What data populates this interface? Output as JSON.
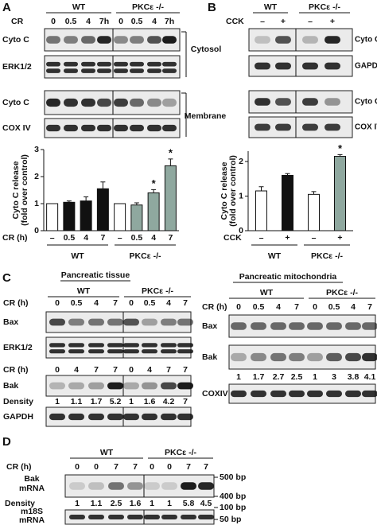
{
  "panels": {
    "A": {
      "label": "A",
      "groups": [
        "WT",
        "PKCε -/-"
      ],
      "row_label": "CR",
      "lanes": [
        "0",
        "0.5",
        "4",
        "7h",
        "0",
        "0.5",
        "4",
        "7h"
      ],
      "blots": [
        "Cyto C",
        "ERK1/2",
        "Cyto C",
        "COX IV"
      ],
      "fractions": [
        "Cytosol",
        "Membrane"
      ]
    },
    "B": {
      "label": "B",
      "groups": [
        "WT",
        "PKCε -/-"
      ],
      "row_label": "CCK",
      "lanes": [
        "–",
        "+",
        "–",
        "+"
      ],
      "blots": [
        "Cyto C",
        "GAPDH",
        "Cyto C",
        "COX IV"
      ]
    },
    "C": {
      "label": "C",
      "tissue": {
        "title": "Pancreatic tissue",
        "groups": [
          "WT",
          "PKCε -/-"
        ],
        "row_label": "CR (h)",
        "lanes": [
          "0",
          "0.5",
          "4",
          "7",
          "0",
          "0.5",
          "4",
          "7"
        ],
        "blots": [
          "Bax",
          "ERK1/2"
        ],
        "row_label_2": "CR (h)",
        "lanes_2": [
          "0",
          "4",
          "7",
          "7",
          "0",
          "4",
          "7",
          "7"
        ],
        "blots_2": [
          "Bak"
        ],
        "density_label": "Density",
        "density": [
          1,
          1.1,
          1.7,
          5.2,
          1,
          1.6,
          4.2,
          7
        ],
        "blots_3": [
          "GAPDH"
        ]
      },
      "mitochondria": {
        "title": "Pancreatic mitochondria",
        "groups": [
          "WT",
          "PKCε -/-"
        ],
        "row_label": "CR (h)",
        "lanes": [
          "0",
          "0.5",
          "4",
          "7",
          "0",
          "0.5",
          "4",
          "7"
        ],
        "blots": [
          "Bax",
          "Bak"
        ],
        "density": [
          1,
          1.7,
          2.7,
          2.5,
          1,
          3,
          3.8,
          4.1
        ],
        "blots_2": [
          "COXIV"
        ]
      }
    },
    "D": {
      "label": "D",
      "groups": [
        "WT",
        "PKCε -/-"
      ],
      "row_label": "CR (h)",
      "lanes": [
        "0",
        "0",
        "7",
        "7",
        "0",
        "0",
        "7",
        "7"
      ],
      "blots": [
        {
          "label": [
            "Bak",
            "mRNA"
          ],
          "markers": [
            "500 bp",
            "400 bp"
          ]
        },
        {
          "label": [
            "m18S",
            "mRNA"
          ],
          "markers": [
            "100 bp",
            "50 bp"
          ]
        }
      ],
      "density_label": "Density",
      "density": [
        1,
        1.1,
        2.5,
        1.6,
        1,
        1,
        5.8,
        4.5
      ]
    }
  },
  "chart_data": [
    {
      "type": "bar",
      "y_label": [
        "Cyto C release",
        "(fold over control)"
      ],
      "x_label": "CR (h)",
      "categories": [
        "–",
        "0.5",
        "4",
        "7",
        "–",
        "0.5",
        "4",
        "7"
      ],
      "group_labels": [
        "WT",
        "PKCε -/-"
      ],
      "values": [
        1,
        1.05,
        1.1,
        1.55,
        1,
        0.95,
        1.4,
        2.4
      ],
      "errors": [
        0,
        0.05,
        0.15,
        0.25,
        0,
        0.08,
        0.12,
        0.25
      ],
      "markers": [
        null,
        null,
        null,
        null,
        null,
        null,
        "*",
        "*"
      ],
      "colors": [
        "#ffffff",
        "#111111",
        "#111111",
        "#111111",
        "#ffffff",
        "#8fa89f",
        "#8fa89f",
        "#8fa89f"
      ],
      "ylim": [
        0,
        3
      ],
      "yticks": [
        0,
        1,
        2,
        3
      ]
    },
    {
      "type": "bar",
      "y_label": [
        "Cyto C release",
        "(fold over control)"
      ],
      "x_label": "CCK",
      "categories": [
        "–",
        "+",
        "–",
        "+"
      ],
      "group_labels": [
        "WT",
        "PKCε -/-"
      ],
      "values": [
        1.15,
        1.6,
        1.05,
        2.15
      ],
      "errors": [
        0.12,
        0.05,
        0.08,
        0.05
      ],
      "markers": [
        null,
        null,
        null,
        "*"
      ],
      "colors": [
        "#ffffff",
        "#111111",
        "#ffffff",
        "#8fa89f"
      ],
      "ylim": [
        0,
        2.3
      ],
      "yticks": [
        0,
        1,
        2
      ]
    }
  ]
}
